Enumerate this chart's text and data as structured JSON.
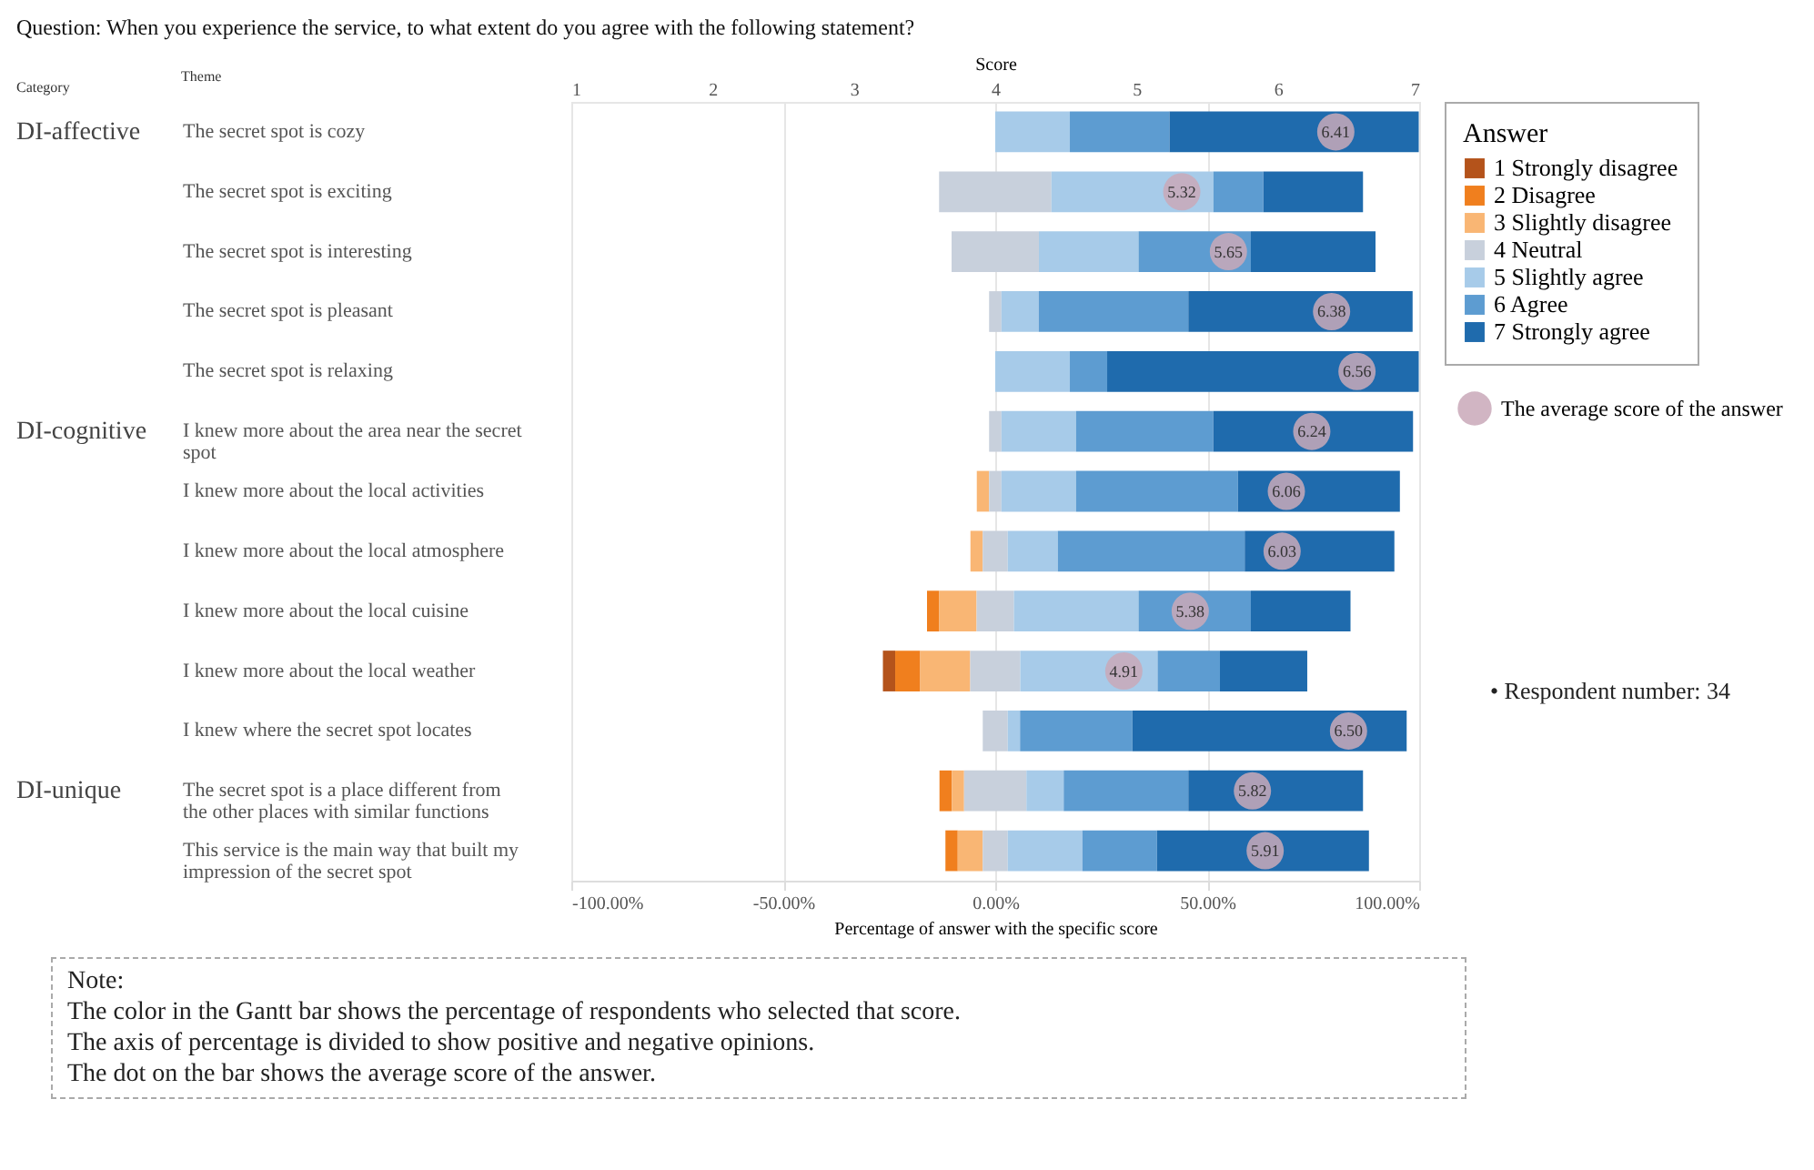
{
  "chart_data": {
    "type": "bar",
    "orientation": "horizontal",
    "title": "Question: When you experience the service, to what extent do you agree with the following statement?",
    "xlabel": "Percentage of answer with the specific score",
    "x2label": "Score",
    "ylabel": "Theme",
    "legend_title": "Answer",
    "legend": "right",
    "grid": "x",
    "categories": [
      "The secret spot is cozy",
      "The secret spot is exciting",
      "The secret spot is interesting",
      "The secret spot is pleasant",
      "The secret spot is relaxing",
      "I knew more about the area near the secret spot",
      "I knew more about the local activities",
      "I knew more about the local atmosphere",
      "I knew more about the local cuisine",
      "I knew more about the local weather",
      "I knew where the secret spot locates",
      "The secret spot is a place different from the other places with similar functions",
      "This service is the main way that built my impression of the secret spot"
    ],
    "xlim": [
      -100,
      100
    ],
    "xticks": [
      {
        "value": -100,
        "label": "-100.00%"
      },
      {
        "value": -50,
        "label": "-50.00%"
      },
      {
        "value": 0,
        "label": "0.00%"
      },
      {
        "value": 50,
        "label": "50.00%"
      },
      {
        "value": 100,
        "label": "100.00%"
      }
    ],
    "x2lim": [
      1,
      7
    ],
    "x2ticks": [
      1,
      2,
      3,
      4,
      5,
      6,
      7
    ],
    "series": [
      {
        "name": "1 Strongly disagree",
        "color": "#b4531b",
        "values": [
          null,
          null,
          null,
          null,
          null,
          null,
          null,
          null,
          null,
          2.9,
          null,
          null,
          null
        ],
        "base": [
          null,
          null,
          null,
          null,
          null,
          null,
          null,
          null,
          null,
          -26.5,
          null,
          null,
          null
        ]
      },
      {
        "name": "2 Disagree",
        "color": "#f07f1e",
        "values": [
          null,
          null,
          null,
          null,
          null,
          null,
          null,
          null,
          2.9,
          5.9,
          null,
          2.9,
          2.9
        ],
        "base": [
          null,
          null,
          null,
          null,
          null,
          null,
          null,
          null,
          -16.1,
          -23.6,
          null,
          -13.15,
          -11.75
        ]
      },
      {
        "name": "3 Slightly disagree",
        "color": "#f9b674",
        "values": [
          null,
          null,
          null,
          null,
          null,
          null,
          2.9,
          2.9,
          8.8,
          11.8,
          null,
          2.9,
          5.9
        ],
        "base": [
          null,
          null,
          null,
          null,
          null,
          null,
          -4.35,
          -5.85,
          -13.2,
          -17.7,
          null,
          -10.25,
          -8.85
        ]
      },
      {
        "name": "4 Neutral",
        "color": "#c8d0dc",
        "values": [
          null,
          26.5,
          20.6,
          2.9,
          null,
          2.9,
          2.9,
          5.9,
          8.8,
          11.8,
          5.9,
          14.7,
          5.9
        ],
        "base": [
          null,
          -13.25,
          -10.3,
          -1.45,
          null,
          -1.45,
          -1.45,
          -2.95,
          -4.4,
          -5.9,
          -2.95,
          -7.35,
          -2.95
        ]
      },
      {
        "name": "5 Slightly agree",
        "color": "#a7cbe9",
        "values": [
          17.6,
          38.2,
          23.5,
          8.8,
          17.6,
          17.6,
          17.6,
          11.8,
          29.4,
          32.4,
          2.9,
          8.8,
          17.6
        ],
        "base": [
          0,
          13.25,
          10.3,
          1.45,
          0,
          1.45,
          1.45,
          2.95,
          4.4,
          5.9,
          2.95,
          7.35,
          2.95
        ]
      },
      {
        "name": "6 Agree",
        "color": "#5d9cd1",
        "values": [
          23.5,
          11.8,
          26.5,
          35.3,
          8.8,
          32.4,
          38.2,
          44.1,
          26.5,
          14.7,
          26.5,
          29.4,
          17.6
        ],
        "base": [
          17.6,
          51.45,
          33.8,
          10.25,
          17.6,
          19.05,
          19.05,
          14.75,
          33.8,
          38.3,
          5.85,
          16.15,
          20.55
        ]
      },
      {
        "name": "7 Strongly agree",
        "color": "#1f6bad",
        "values": [
          58.8,
          23.5,
          29.4,
          52.9,
          73.5,
          47.1,
          38.2,
          35.3,
          23.5,
          20.6,
          64.7,
          41.2,
          50.0
        ],
        "base": [
          41.1,
          63.25,
          60.3,
          45.55,
          26.4,
          51.45,
          57.25,
          58.85,
          60.3,
          53.0,
          32.35,
          45.55,
          38.15
        ]
      },
      {
        "name": "The average score of the answer",
        "type": "scatter",
        "axis": "x2",
        "marker": "circle",
        "color": "#c9a9b9",
        "values": [
          6.41,
          5.32,
          5.65,
          6.38,
          6.56,
          6.24,
          6.06,
          6.03,
          5.38,
          4.91,
          6.5,
          5.82,
          5.91
        ],
        "value_labels": [
          "6.41",
          "5.32",
          "5.65",
          "6.38",
          "6.56",
          "6.24",
          "6.06",
          "6.03",
          "5.38",
          "4.91",
          "6.50",
          "5.82",
          "5.91"
        ]
      }
    ],
    "annotations": [
      "Category",
      "• Respondent number: 34",
      "DI-affective",
      "DI-cognitive",
      "DI-unique",
      "Note:",
      "The color in the Gantt bar shows the percentage of respondents who selected that score.",
      "The axis of percentage is divided to show positive and negative opinions.",
      "The dot on the bar shows the average score of the answer."
    ]
  }
}
